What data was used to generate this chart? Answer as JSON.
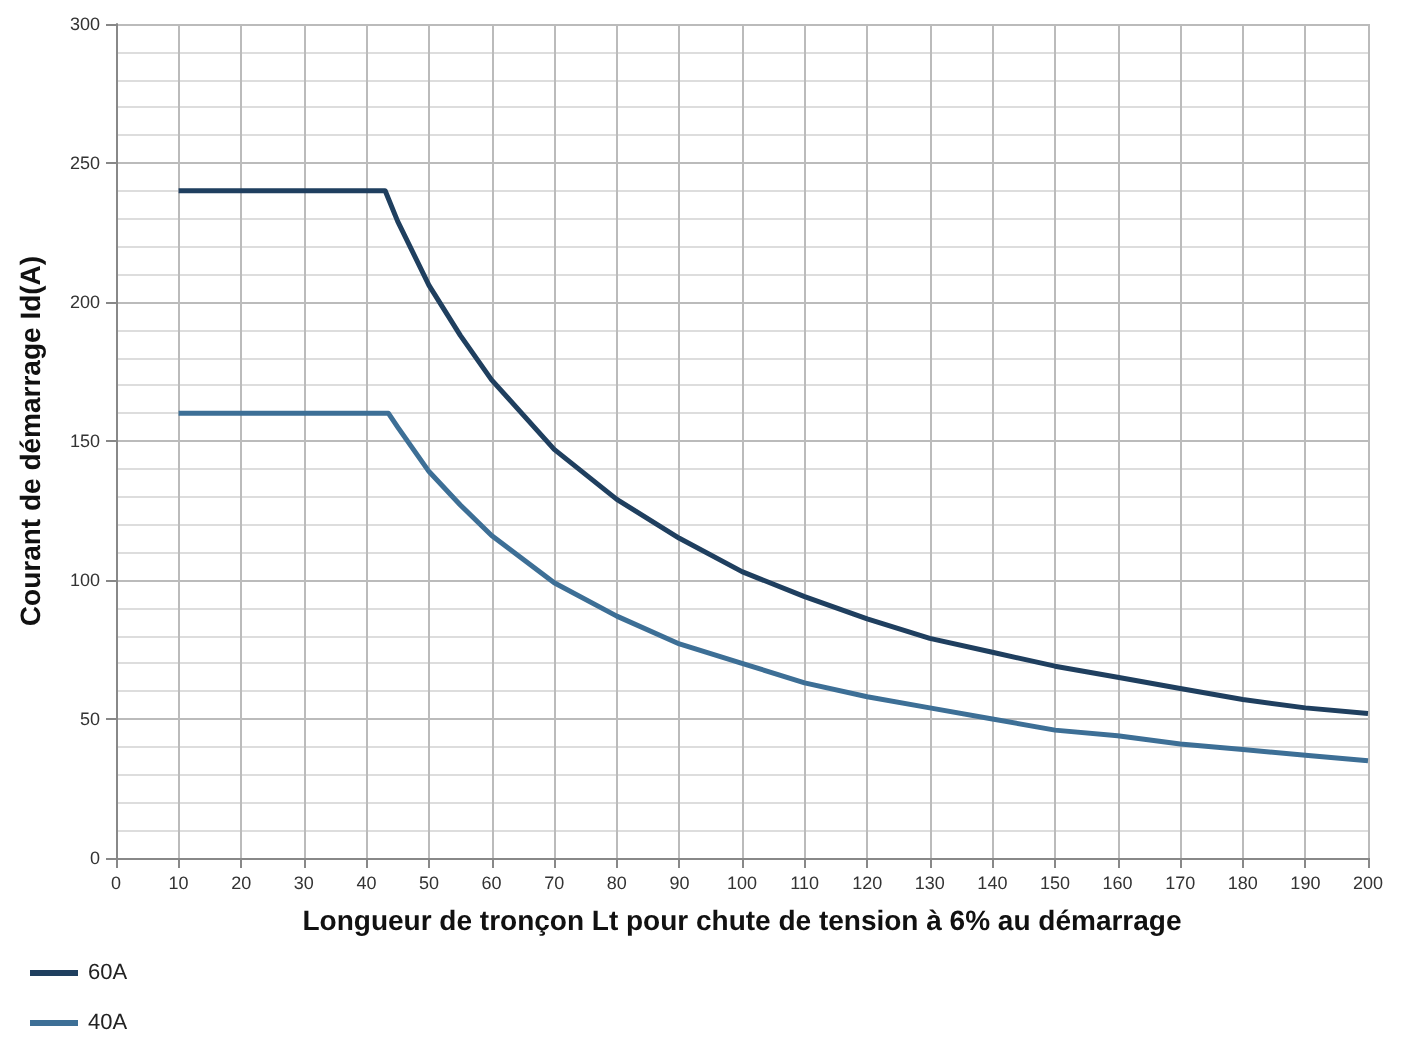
{
  "chart_data": {
    "type": "line",
    "xlabel": "Longueur de tronçon Lt pour chute de tension à 6% au démarrage",
    "ylabel": "Courant de démarrage Id(A)",
    "series": [
      {
        "name": "60A",
        "color": "#1f3f5f",
        "x": [
          10,
          43,
          45,
          50,
          55,
          60,
          70,
          80,
          90,
          100,
          110,
          120,
          130,
          140,
          150,
          160,
          170,
          180,
          190,
          200
        ],
        "values": [
          240,
          240,
          229,
          206,
          188,
          172,
          147,
          129,
          115,
          103,
          94,
          86,
          79,
          74,
          69,
          65,
          61,
          57,
          54,
          52
        ]
      },
      {
        "name": "40A",
        "color": "#3d6f96",
        "x": [
          10,
          43.5,
          45,
          50,
          55,
          60,
          70,
          80,
          90,
          100,
          110,
          120,
          130,
          140,
          150,
          160,
          170,
          180,
          190,
          200
        ],
        "values": [
          160,
          160,
          155,
          139,
          127,
          116,
          99,
          87,
          77,
          70,
          63,
          58,
          54,
          50,
          46,
          44,
          41,
          39,
          37,
          35
        ]
      }
    ],
    "xlim": [
      0,
      200
    ],
    "xticks": [
      0,
      10,
      20,
      30,
      40,
      50,
      60,
      70,
      80,
      90,
      100,
      110,
      120,
      130,
      140,
      150,
      160,
      170,
      180,
      190,
      200
    ],
    "ylim": [
      0,
      300
    ],
    "yticks": [
      0,
      50,
      100,
      150,
      200,
      250,
      300
    ],
    "grid": true,
    "legend": "bottom left",
    "marker": "none",
    "line_style": "solid"
  }
}
